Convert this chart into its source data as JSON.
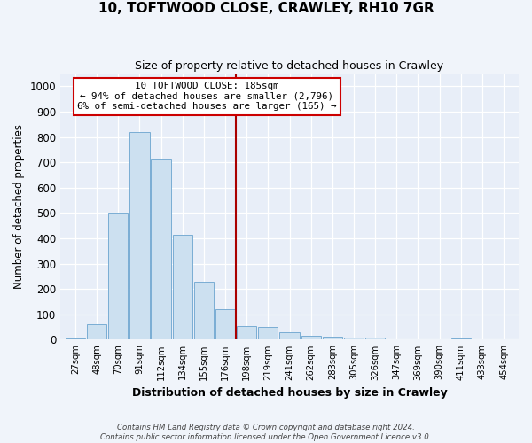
{
  "title1": "10, TOFTWOOD CLOSE, CRAWLEY, RH10 7GR",
  "title2": "Size of property relative to detached houses in Crawley",
  "xlabel": "Distribution of detached houses by size in Crawley",
  "ylabel": "Number of detached properties",
  "categories": [
    "27sqm",
    "48sqm",
    "70sqm",
    "91sqm",
    "112sqm",
    "134sqm",
    "155sqm",
    "176sqm",
    "198sqm",
    "219sqm",
    "241sqm",
    "262sqm",
    "283sqm",
    "305sqm",
    "326sqm",
    "347sqm",
    "369sqm",
    "390sqm",
    "411sqm",
    "433sqm",
    "454sqm"
  ],
  "values": [
    5,
    60,
    500,
    820,
    710,
    415,
    230,
    120,
    55,
    50,
    30,
    15,
    12,
    10,
    10,
    0,
    0,
    0,
    5,
    0,
    0
  ],
  "bar_color": "#cce0f0",
  "bar_edge_color": "#7aadd4",
  "background_color": "#e8eef8",
  "fig_background_color": "#f0f4fa",
  "grid_color": "#ffffff",
  "vline_x": 7.5,
  "vline_color": "#aa0000",
  "annotation_title": "10 TOFTWOOD CLOSE: 185sqm",
  "annotation_line1": "← 94% of detached houses are smaller (2,796)",
  "annotation_line2": "6% of semi-detached houses are larger (165) →",
  "annotation_box_color": "#cc0000",
  "ylim": [
    0,
    1050
  ],
  "yticks": [
    0,
    100,
    200,
    300,
    400,
    500,
    600,
    700,
    800,
    900,
    1000
  ],
  "footer1": "Contains HM Land Registry data © Crown copyright and database right 2024.",
  "footer2": "Contains public sector information licensed under the Open Government Licence v3.0."
}
